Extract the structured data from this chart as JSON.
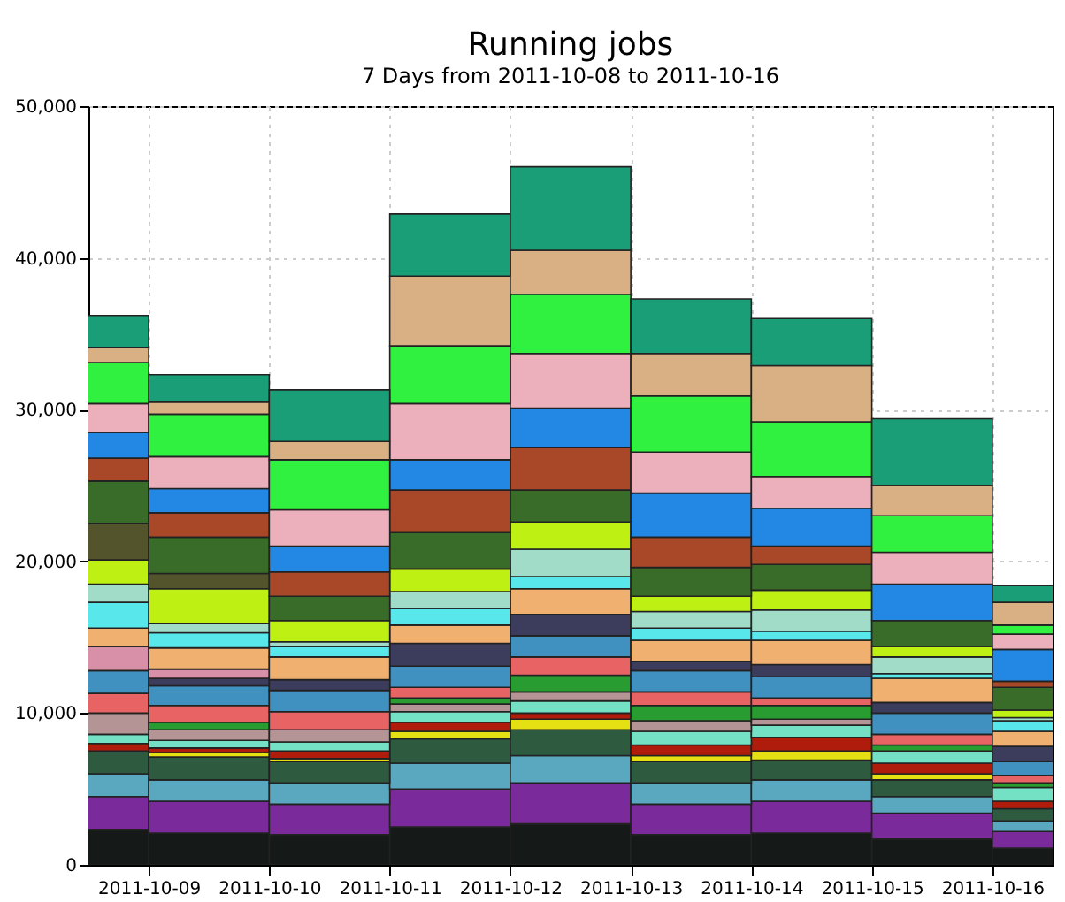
{
  "chart_data": {
    "type": "bar",
    "stacked": true,
    "title": "Running jobs",
    "subtitle": "7 Days from 2011-10-08 to 2011-10-16",
    "x": [
      "2011-10-08T12:00",
      "2011-10-09T12:00",
      "2011-10-10T12:00",
      "2011-10-11T12:00",
      "2011-10-12T12:00",
      "2011-10-13T12:00",
      "2011-10-14T12:00",
      "2011-10-15T12:00",
      "2011-10-16T12:00"
    ],
    "xlim": [
      "2011-10-08T12:00",
      "2011-10-16T12:00"
    ],
    "xticks": [
      "2011-10-09",
      "2011-10-10",
      "2011-10-11",
      "2011-10-12",
      "2011-10-13",
      "2011-10-14",
      "2011-10-15",
      "2011-10-16"
    ],
    "ylim": [
      0,
      50000
    ],
    "yticks": [
      0,
      {
        "value": 10000,
        "label": "10,000"
      },
      {
        "value": 20000,
        "label": "20,000"
      },
      {
        "value": 30000,
        "label": "30,000"
      },
      {
        "value": 40000,
        "label": "40,000"
      },
      {
        "value": 50000,
        "label": "50,000"
      }
    ],
    "grid": true,
    "series": [
      {
        "color": "#151a18",
        "values": [
          2300,
          2100,
          2000,
          2500,
          2700,
          2000,
          2100,
          1700,
          1100
        ]
      },
      {
        "color": "#7a2a9a",
        "values": [
          2200,
          2100,
          2000,
          2500,
          2700,
          2000,
          2100,
          1700,
          1100
        ]
      },
      {
        "color": "#5aa8c0",
        "values": [
          1500,
          1400,
          1400,
          1700,
          1800,
          1400,
          1400,
          1100,
          700
        ]
      },
      {
        "color": "#2e5a40",
        "values": [
          1500,
          1500,
          1400,
          1600,
          1700,
          1400,
          1300,
          1100,
          800
        ]
      },
      {
        "color": "#e4e014",
        "values": [
          null,
          300,
          200,
          500,
          700,
          400,
          600,
          400,
          null
        ]
      },
      {
        "color": "#b01c0c",
        "values": [
          500,
          300,
          500,
          600,
          400,
          700,
          900,
          700,
          500
        ]
      },
      {
        "color": "#74e0c4",
        "values": [
          600,
          500,
          600,
          700,
          800,
          900,
          800,
          800,
          900
        ]
      },
      {
        "color": "#b49494",
        "values": [
          1400,
          700,
          800,
          500,
          600,
          700,
          400,
          null,
          null
        ]
      },
      {
        "color": "#289c30",
        "values": [
          null,
          500,
          null,
          400,
          1100,
          1000,
          900,
          400,
          300
        ]
      },
      {
        "color": "#e86464",
        "values": [
          1300,
          1100,
          1200,
          700,
          1200,
          900,
          500,
          700,
          500
        ]
      },
      {
        "color": "#4090c0",
        "values": [
          1500,
          1300,
          1400,
          1400,
          1400,
          1400,
          1400,
          1400,
          900
        ]
      },
      {
        "color": "#3c3c5c",
        "values": [
          null,
          500,
          700,
          1500,
          1400,
          600,
          800,
          700,
          1000
        ]
      },
      {
        "color": "#d890a8",
        "values": [
          1600,
          600,
          null,
          null,
          null,
          null,
          null,
          null,
          null
        ]
      },
      {
        "color": "#f0b070",
        "values": [
          1200,
          1400,
          1500,
          1200,
          1700,
          1400,
          1600,
          1600,
          1000
        ]
      },
      {
        "color": "#58e8ec",
        "values": [
          1700,
          1000,
          700,
          1100,
          800,
          800,
          600,
          300,
          700
        ]
      },
      {
        "color": "#a0dcc8",
        "values": [
          1200,
          600,
          300,
          1100,
          1800,
          1100,
          1400,
          1100,
          200
        ]
      },
      {
        "color": "#bef014",
        "values": [
          1600,
          2300,
          1400,
          1500,
          1800,
          1000,
          1300,
          700,
          500
        ]
      },
      {
        "color": "#54542c",
        "values": [
          2400,
          1000,
          null,
          null,
          null,
          null,
          null,
          null,
          null
        ]
      },
      {
        "color": "#386c28",
        "values": [
          2800,
          2400,
          1600,
          2400,
          2100,
          1900,
          1700,
          1700,
          1500
        ]
      },
      {
        "color": "#a84828",
        "values": [
          1500,
          1600,
          1600,
          2800,
          2800,
          2000,
          1200,
          null,
          400
        ]
      },
      {
        "color": "#2288e4",
        "values": [
          1700,
          1600,
          1700,
          2000,
          2600,
          2900,
          2500,
          2400,
          2100
        ]
      },
      {
        "color": "#ecb0bc",
        "values": [
          1900,
          2100,
          2400,
          3700,
          3600,
          2700,
          2100,
          2100,
          1000
        ]
      },
      {
        "color": "#30f040",
        "values": [
          2700,
          2800,
          3300,
          3800,
          3900,
          3700,
          3600,
          2400,
          600
        ]
      },
      {
        "color": "#d8b084",
        "values": [
          1000,
          800,
          1200,
          4600,
          2900,
          2800,
          3700,
          2000,
          1500
        ]
      },
      {
        "color": "#1a9e77",
        "values": [
          2100,
          1800,
          3400,
          4100,
          5500,
          3600,
          3100,
          4400,
          1100
        ]
      }
    ]
  }
}
